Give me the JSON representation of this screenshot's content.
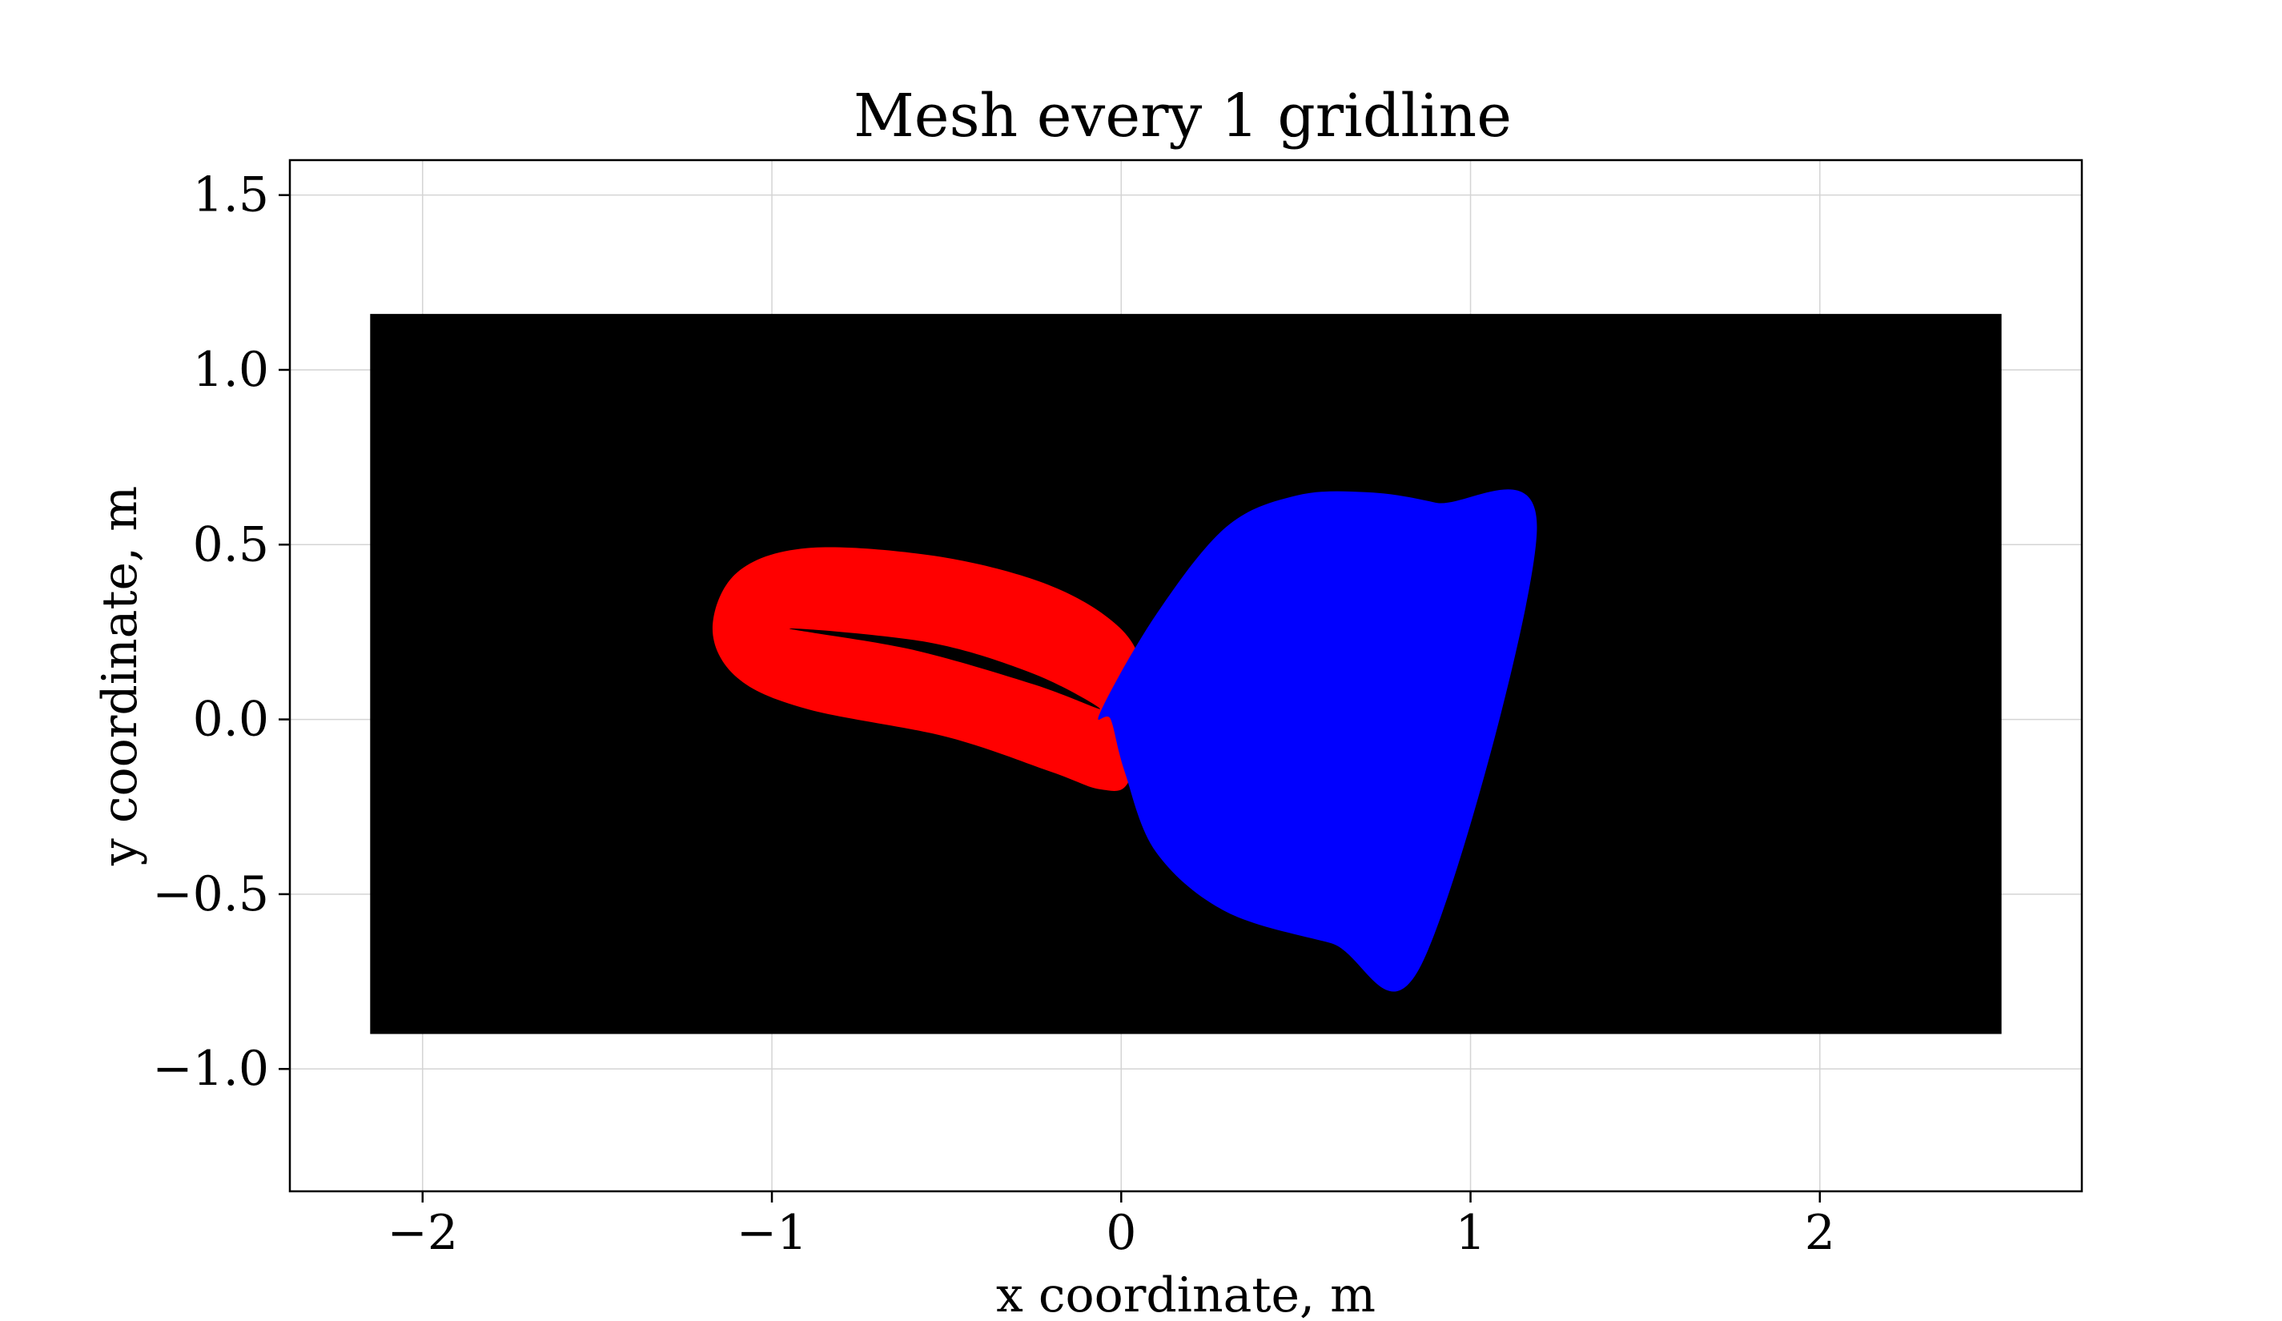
{
  "chart_data": {
    "type": "scatter",
    "title": "Mesh every 1 gridline",
    "xlabel": "x coordinate, m",
    "ylabel": "y coordinate, m",
    "xlim": [
      -2.38,
      2.75
    ],
    "ylim": [
      -1.35,
      1.6
    ],
    "xticks": [
      -2,
      -1,
      0,
      1,
      2
    ],
    "xtick_labels": [
      "−2",
      "−1",
      "0",
      "1",
      "2"
    ],
    "yticks": [
      1.5,
      1.0,
      0.5,
      0.0,
      -0.5,
      -1.0
    ],
    "ytick_labels": [
      "1.5",
      "1.0",
      "0.5",
      "0.0",
      "−0.5",
      "−1.0"
    ],
    "grid": true,
    "series": [
      {
        "color": "#000000",
        "shape": "rectangle",
        "outline": [
          [
            -2.15,
            -0.9
          ],
          [
            2.52,
            -0.9
          ],
          [
            2.52,
            1.16
          ],
          [
            -2.15,
            1.16
          ]
        ]
      },
      {
        "color": "#ff0000",
        "shape": "closed-ring",
        "outer": [
          [
            -0.9,
            0.49
          ],
          [
            -0.55,
            0.47
          ],
          [
            -0.25,
            0.4
          ],
          [
            -0.05,
            0.3
          ],
          [
            0.05,
            0.18
          ],
          [
            0.05,
            0.0
          ],
          [
            0.02,
            -0.18
          ],
          [
            -0.06,
            -0.2
          ],
          [
            -0.2,
            -0.15
          ],
          [
            -0.5,
            -0.05
          ],
          [
            -0.9,
            0.03
          ],
          [
            -1.1,
            0.12
          ],
          [
            -1.17,
            0.26
          ],
          [
            -1.1,
            0.42
          ]
        ],
        "inner": [
          [
            -0.95,
            0.26
          ],
          [
            -0.55,
            0.22
          ],
          [
            -0.25,
            0.13
          ],
          [
            -0.06,
            0.03
          ],
          [
            -0.25,
            0.1
          ],
          [
            -0.6,
            0.2
          ]
        ]
      },
      {
        "color": "#0000ff",
        "shape": "fan",
        "outline": [
          [
            -0.06,
            0.02
          ],
          [
            0.1,
            0.3
          ],
          [
            0.3,
            0.55
          ],
          [
            0.5,
            0.64
          ],
          [
            0.7,
            0.65
          ],
          [
            0.9,
            0.62
          ],
          [
            1.19,
            0.54
          ],
          [
            0.86,
            -0.7
          ],
          [
            0.6,
            -0.64
          ],
          [
            0.3,
            -0.55
          ],
          [
            0.1,
            -0.38
          ],
          [
            0.01,
            -0.15
          ],
          [
            -0.03,
            0.0
          ]
        ]
      }
    ]
  }
}
